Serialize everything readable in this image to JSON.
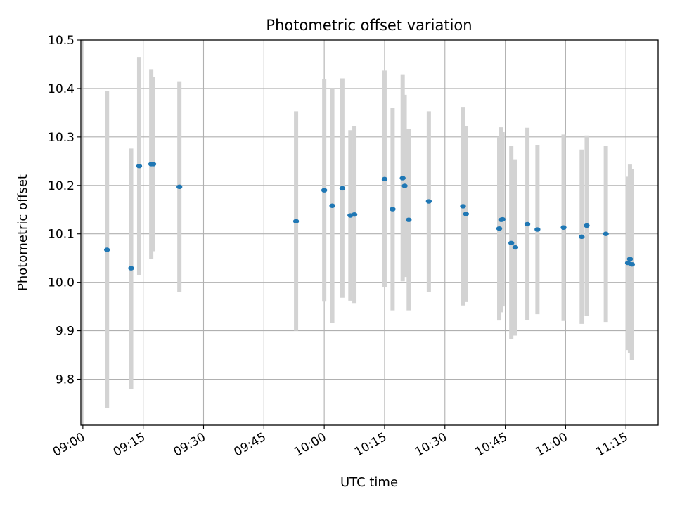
{
  "chart_data": {
    "type": "scatter",
    "title": "Photometric offset variation",
    "xlabel": "UTC time",
    "ylabel": "Photometric offset",
    "xlim": [
      "08:59:30",
      "11:23:00"
    ],
    "ylim": [
      9.705,
      10.5
    ],
    "x_ticks": [
      "09:00",
      "09:15",
      "09:30",
      "09:45",
      "10:00",
      "10:15",
      "10:30",
      "10:45",
      "11:00",
      "11:15"
    ],
    "y_ticks": [
      "9.8",
      "9.9",
      "10.0",
      "10.1",
      "10.2",
      "10.3",
      "10.4",
      "10.5"
    ],
    "grid": true,
    "colors": {
      "point": "#1f77b4",
      "errorbar": "#d3d3d3",
      "grid": "#b0b0b0"
    },
    "points": [
      {
        "x": "09:06",
        "y": 10.067,
        "lo": 9.74,
        "hi": 10.395
      },
      {
        "x": "09:12",
        "y": 10.029,
        "lo": 9.78,
        "hi": 10.276
      },
      {
        "x": "09:14",
        "y": 10.24,
        "lo": 10.015,
        "hi": 10.465
      },
      {
        "x": "09:17",
        "y": 10.244,
        "lo": 10.048,
        "hi": 10.44
      },
      {
        "x": "09:17:30",
        "y": 10.244,
        "lo": 10.064,
        "hi": 10.424
      },
      {
        "x": "09:24",
        "y": 10.197,
        "lo": 9.98,
        "hi": 10.415
      },
      {
        "x": "09:53",
        "y": 10.126,
        "lo": 9.9,
        "hi": 10.353
      },
      {
        "x": "09:60",
        "y": 10.19,
        "lo": 9.96,
        "hi": 10.419
      },
      {
        "x": "10:02",
        "y": 10.158,
        "lo": 9.916,
        "hi": 10.4
      },
      {
        "x": "10:04:30",
        "y": 10.194,
        "lo": 9.968,
        "hi": 10.421
      },
      {
        "x": "10:06:30",
        "y": 10.138,
        "lo": 9.962,
        "hi": 10.314
      },
      {
        "x": "10:07:30",
        "y": 10.14,
        "lo": 9.957,
        "hi": 10.323
      },
      {
        "x": "10:15",
        "y": 10.213,
        "lo": 9.99,
        "hi": 10.437
      },
      {
        "x": "10:17",
        "y": 10.151,
        "lo": 9.942,
        "hi": 10.36
      },
      {
        "x": "10:19:30",
        "y": 10.215,
        "lo": 10.002,
        "hi": 10.428
      },
      {
        "x": "10:20",
        "y": 10.199,
        "lo": 10.011,
        "hi": 10.387
      },
      {
        "x": "10:21",
        "y": 10.129,
        "lo": 9.942,
        "hi": 10.317
      },
      {
        "x": "10:26",
        "y": 10.167,
        "lo": 9.98,
        "hi": 10.353
      },
      {
        "x": "10:34:30",
        "y": 10.157,
        "lo": 9.952,
        "hi": 10.362
      },
      {
        "x": "10:35:15",
        "y": 10.141,
        "lo": 9.959,
        "hi": 10.323
      },
      {
        "x": "10:43:30",
        "y": 10.111,
        "lo": 9.921,
        "hi": 10.3
      },
      {
        "x": "10:44",
        "y": 10.129,
        "lo": 9.938,
        "hi": 10.32
      },
      {
        "x": "10:44:20",
        "y": 10.13,
        "lo": 9.95,
        "hi": 10.31
      },
      {
        "x": "10:46:30",
        "y": 10.081,
        "lo": 9.882,
        "hi": 10.281
      },
      {
        "x": "10:47:30",
        "y": 10.072,
        "lo": 9.89,
        "hi": 10.254
      },
      {
        "x": "10:50:30",
        "y": 10.12,
        "lo": 9.922,
        "hi": 10.319
      },
      {
        "x": "10:53",
        "y": 10.109,
        "lo": 9.934,
        "hi": 10.283
      },
      {
        "x": "10:59:30",
        "y": 10.113,
        "lo": 9.92,
        "hi": 10.305
      },
      {
        "x": "11:04",
        "y": 10.094,
        "lo": 9.914,
        "hi": 10.274
      },
      {
        "x": "11:05:15",
        "y": 10.117,
        "lo": 9.93,
        "hi": 10.303
      },
      {
        "x": "11:10",
        "y": 10.1,
        "lo": 9.918,
        "hi": 10.281
      },
      {
        "x": "11:15:30",
        "y": 10.04,
        "lo": 9.86,
        "hi": 10.218
      },
      {
        "x": "11:16",
        "y": 10.048,
        "lo": 9.853,
        "hi": 10.243
      },
      {
        "x": "11:16:30",
        "y": 10.037,
        "lo": 9.84,
        "hi": 10.234
      }
    ]
  }
}
